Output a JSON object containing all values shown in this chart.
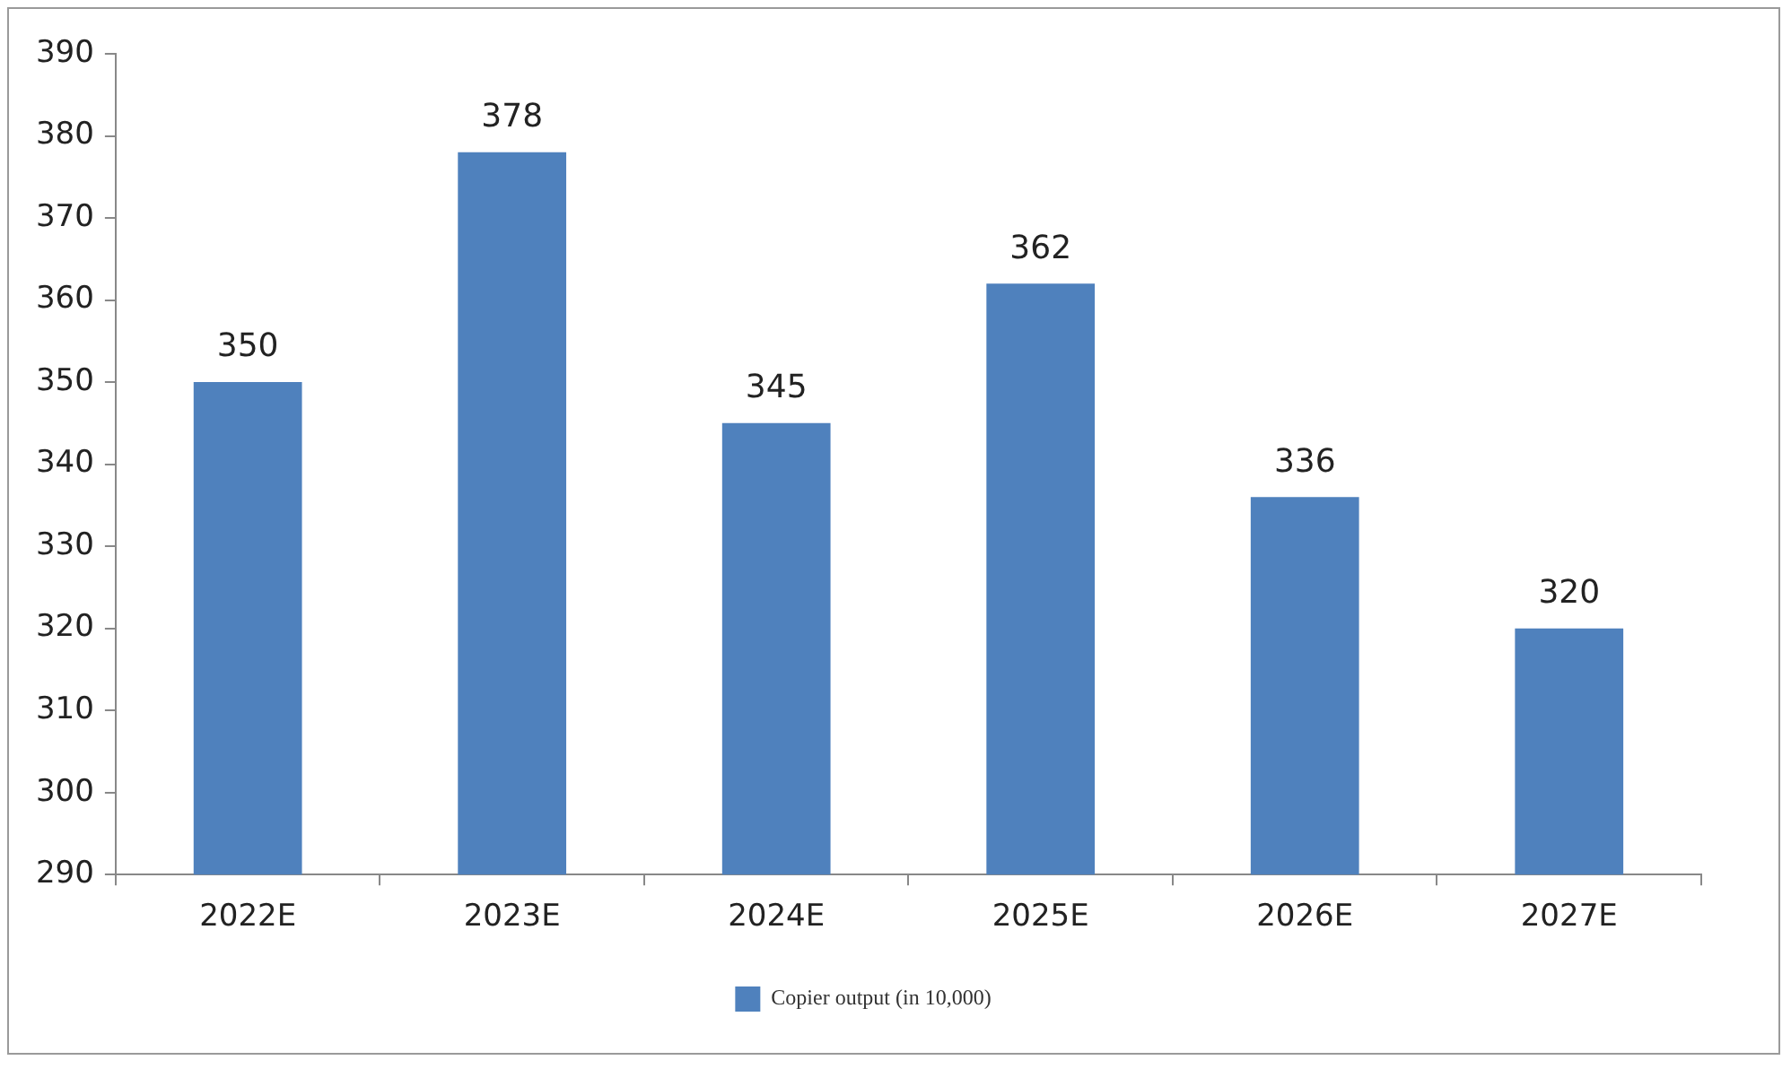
{
  "chart_data": {
    "type": "bar",
    "categories": [
      "2022E",
      "2023E",
      "2024E",
      "2025E",
      "2026E",
      "2027E"
    ],
    "series": [
      {
        "name": "Copier output (in 10,000)",
        "color": "#4f81bd",
        "values": [
          350,
          378,
          345,
          362,
          336,
          320
        ]
      }
    ],
    "ylim": [
      290,
      390
    ],
    "yticks": [
      290,
      300,
      310,
      320,
      330,
      340,
      350,
      360,
      370,
      380,
      390
    ],
    "grid": false,
    "legend": "bottom",
    "data_labels": true
  }
}
